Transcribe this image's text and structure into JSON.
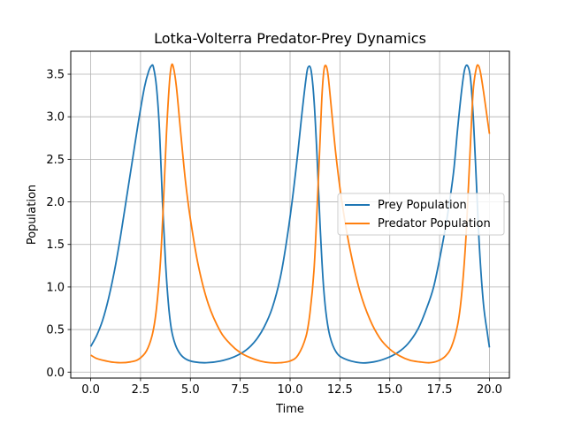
{
  "chart_data": {
    "type": "line",
    "title": "Lotka-Volterra Predator-Prey Dynamics",
    "xlabel": "Time",
    "ylabel": "Population",
    "xlim": [
      -1.0,
      21.0
    ],
    "ylim": [
      -0.07,
      3.77
    ],
    "xticks": [
      0.0,
      2.5,
      5.0,
      7.5,
      10.0,
      12.5,
      15.0,
      17.5,
      20.0
    ],
    "xtick_labels": [
      "0.0",
      "2.5",
      "5.0",
      "7.5",
      "10.0",
      "12.5",
      "15.0",
      "17.5",
      "20.0"
    ],
    "yticks": [
      0.0,
      0.5,
      1.0,
      1.5,
      2.0,
      2.5,
      3.0,
      3.5
    ],
    "ytick_labels": [
      "0.0",
      "0.5",
      "1.0",
      "1.5",
      "2.0",
      "2.5",
      "3.0",
      "3.5"
    ],
    "grid": true,
    "legend_position": "center-right",
    "series": [
      {
        "name": "Prey Population",
        "color": "#1f77b4",
        "x": [
          0.0,
          0.3,
          0.6,
          0.9,
          1.2,
          1.5,
          1.8,
          2.1,
          2.4,
          2.7,
          2.9,
          3.05,
          3.15,
          3.3,
          3.45,
          3.6,
          3.75,
          3.9,
          4.05,
          4.25,
          4.5,
          4.8,
          5.2,
          5.8,
          6.5,
          7.2,
          7.8,
          8.3,
          8.7,
          9.1,
          9.5,
          9.8,
          10.1,
          10.4,
          10.6,
          10.8,
          10.9,
          11.05,
          11.2,
          11.35,
          11.5,
          11.65,
          11.8,
          12.0,
          12.3,
          12.7,
          13.5,
          14.2,
          14.8,
          15.4,
          15.9,
          16.4,
          16.8,
          17.2,
          17.6,
          17.9,
          18.2,
          18.4,
          18.6,
          18.75,
          18.9,
          19.05,
          19.2,
          19.35,
          19.5,
          19.7,
          19.9,
          20.0
        ],
        "y": [
          0.3,
          0.43,
          0.61,
          0.87,
          1.2,
          1.6,
          2.05,
          2.5,
          2.95,
          3.35,
          3.53,
          3.6,
          3.58,
          3.35,
          2.85,
          2.0,
          1.3,
          0.8,
          0.5,
          0.32,
          0.21,
          0.15,
          0.12,
          0.11,
          0.13,
          0.18,
          0.26,
          0.38,
          0.53,
          0.75,
          1.1,
          1.5,
          2.0,
          2.6,
          3.05,
          3.45,
          3.58,
          3.55,
          3.2,
          2.55,
          1.75,
          1.1,
          0.7,
          0.42,
          0.24,
          0.16,
          0.11,
          0.12,
          0.16,
          0.23,
          0.33,
          0.5,
          0.72,
          1.0,
          1.45,
          1.85,
          2.35,
          2.85,
          3.3,
          3.55,
          3.6,
          3.45,
          2.95,
          2.2,
          1.45,
          0.8,
          0.45,
          0.29
        ]
      },
      {
        "name": "Predator Population",
        "color": "#ff7f0e",
        "x": [
          0.0,
          0.3,
          0.6,
          1.0,
          1.5,
          2.0,
          2.4,
          2.8,
          3.1,
          3.3,
          3.5,
          3.65,
          3.8,
          3.95,
          4.05,
          4.15,
          4.3,
          4.5,
          4.75,
          5.0,
          5.4,
          5.9,
          6.5,
          7.0,
          7.5,
          8.0,
          8.5,
          9.0,
          9.5,
          10.0,
          10.4,
          10.8,
          11.0,
          11.2,
          11.35,
          11.5,
          11.6,
          11.7,
          11.8,
          11.9,
          12.05,
          12.3,
          12.6,
          13.0,
          13.5,
          14.0,
          14.5,
          15.0,
          15.5,
          16.0,
          16.5,
          17.0,
          17.4,
          17.8,
          18.1,
          18.4,
          18.6,
          18.8,
          18.95,
          19.1,
          19.2,
          19.35,
          19.45,
          19.55,
          19.7,
          19.85,
          20.0
        ],
        "y": [
          0.2,
          0.16,
          0.14,
          0.12,
          0.11,
          0.12,
          0.15,
          0.25,
          0.45,
          0.75,
          1.3,
          2.0,
          2.8,
          3.4,
          3.6,
          3.58,
          3.35,
          2.85,
          2.25,
          1.8,
          1.25,
          0.8,
          0.48,
          0.33,
          0.23,
          0.17,
          0.13,
          0.11,
          0.11,
          0.13,
          0.2,
          0.42,
          0.7,
          1.2,
          1.9,
          2.7,
          3.25,
          3.55,
          3.6,
          3.5,
          3.15,
          2.55,
          2.0,
          1.45,
          0.95,
          0.62,
          0.4,
          0.27,
          0.19,
          0.14,
          0.12,
          0.11,
          0.13,
          0.19,
          0.3,
          0.55,
          0.9,
          1.5,
          2.2,
          2.95,
          3.35,
          3.58,
          3.6,
          3.52,
          3.3,
          3.05,
          2.8
        ]
      }
    ]
  }
}
